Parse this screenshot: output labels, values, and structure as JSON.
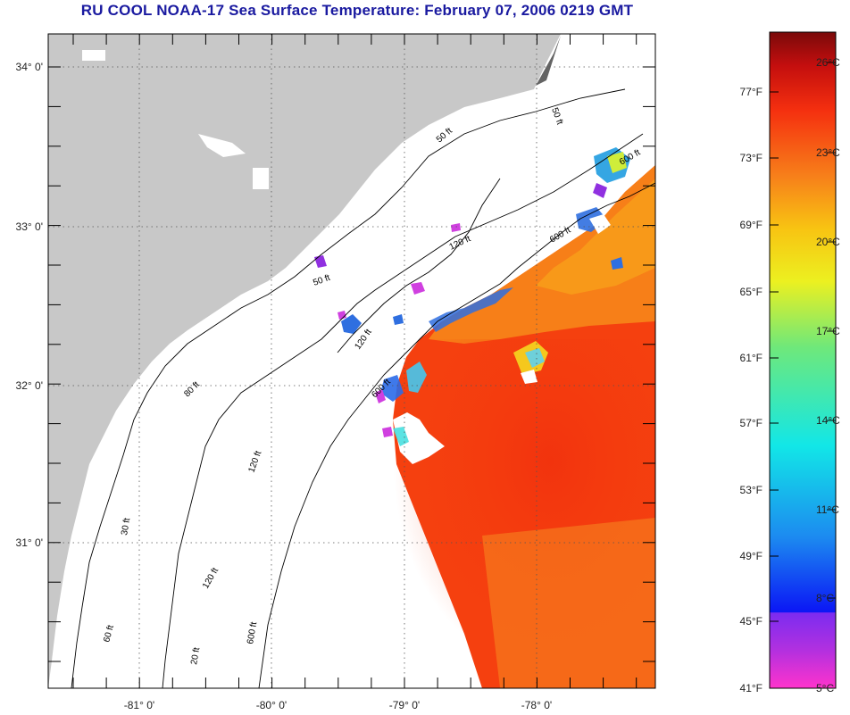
{
  "title": "RU COOL  NOAA-17  Sea Surface Temperature:  February 07, 2006 0219 GMT",
  "axes": {
    "lat_ticks": [
      "34° 0'",
      "33° 0'",
      "32° 0'",
      "31° 0'"
    ],
    "lon_ticks": [
      "-81° 0'",
      "-80° 0'",
      "-79° 0'",
      "-78° 0'"
    ]
  },
  "contour_labels": {
    "c50a": "50 ft",
    "c50b": "50 ft",
    "c120a": "120 ft",
    "c600a": "600 ft",
    "c600b": "600 ft",
    "c50c": "50 ft",
    "c120b": "120 ft",
    "c600c": "600 ft",
    "c120c": "120 ft",
    "c60": "60 ft",
    "c120d": "120 ft",
    "c20": "20 ft",
    "c600d": "600 ft",
    "c80": "80 ft",
    "c30": "30 ft"
  },
  "colorbar": {
    "fahrenheit": [
      "77°F",
      "73°F",
      "69°F",
      "65°F",
      "61°F",
      "57°F",
      "53°F",
      "49°F",
      "45°F",
      "41°F"
    ],
    "celsius": [
      "26°C",
      "23°C",
      "20°C",
      "17°C",
      "14°C",
      "11°C",
      "8°C",
      "5°C"
    ]
  },
  "colors": {
    "title": "#1a1aa0",
    "land": "#c8c8c8",
    "warm_sst": "#f2350f",
    "mid_sst": "#f7861a",
    "cool_sst": "#2f6fe0"
  }
}
